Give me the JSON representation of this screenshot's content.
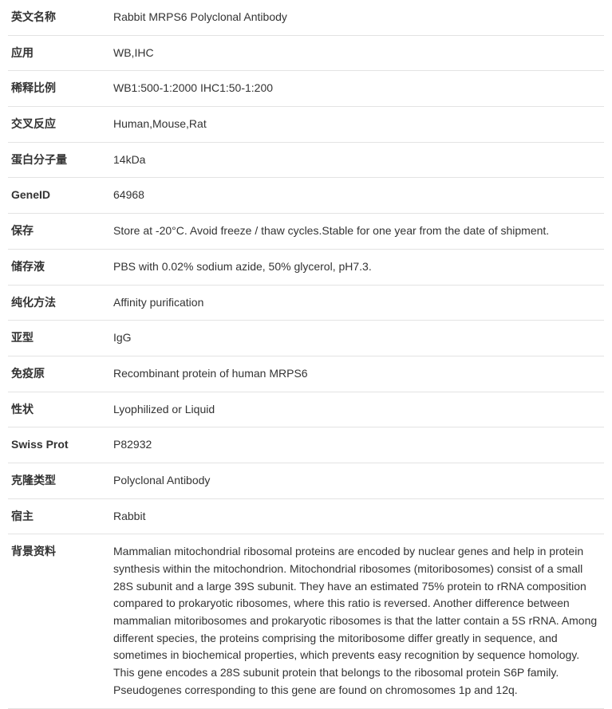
{
  "rows": [
    {
      "label": "英文名称",
      "value": "Rabbit MRPS6 Polyclonal Antibody"
    },
    {
      "label": "应用",
      "value": "WB,IHC"
    },
    {
      "label": "稀释比例",
      "value": "WB1:500-1:2000 IHC1:50-1:200"
    },
    {
      "label": "交叉反应",
      "value": "Human,Mouse,Rat"
    },
    {
      "label": "蛋白分子量",
      "value": "14kDa"
    },
    {
      "label": "GeneID",
      "value": "64968"
    },
    {
      "label": "保存",
      "value": "Store at -20°C. Avoid freeze / thaw cycles.Stable for one year from the date of shipment."
    },
    {
      "label": "储存液",
      "value": "PBS with 0.02% sodium azide, 50% glycerol, pH7.3."
    },
    {
      "label": "纯化方法",
      "value": "Affinity purification"
    },
    {
      "label": "亚型",
      "value": "IgG"
    },
    {
      "label": "免疫原",
      "value": "Recombinant protein of human MRPS6"
    },
    {
      "label": "性状",
      "value": "Lyophilized or Liquid"
    },
    {
      "label": "Swiss Prot",
      "value": "P82932"
    },
    {
      "label": "克隆类型",
      "value": "Polyclonal Antibody"
    },
    {
      "label": "宿主",
      "value": "Rabbit"
    },
    {
      "label": "背景资料",
      "value": "Mammalian mitochondrial ribosomal proteins are encoded by nuclear genes and help in protein synthesis within the mitochondrion. Mitochondrial ribosomes (mitoribosomes) consist of a small 28S subunit and a large 39S subunit. They have an estimated 75% protein to rRNA composition compared to prokaryotic ribosomes, where this ratio is reversed. Another difference between mammalian mitoribosomes and prokaryotic ribosomes is that the latter contain a 5S rRNA. Among different species, the proteins comprising the mitoribosome differ greatly in sequence, and sometimes in biochemical properties, which prevents easy recognition by sequence homology. This gene encodes a 28S subunit protein that belongs to the ribosomal protein S6P family. Pseudogenes corresponding to this gene are found on chromosomes 1p and 12q."
    }
  ]
}
